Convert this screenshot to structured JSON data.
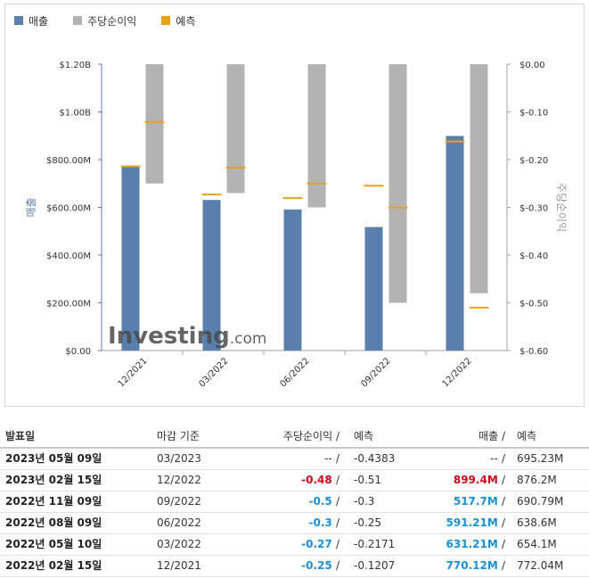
{
  "legend": {
    "revenue": "매출",
    "eps": "주당순이익",
    "forecast": "예측"
  },
  "colors": {
    "revenue": "#5b7fad",
    "eps": "#b3b3b3",
    "forecast": "#e8a21d",
    "negative": "#d0021b",
    "positive": "#1a8fd8"
  },
  "chart_data": {
    "type": "bar",
    "categories": [
      "12/2021",
      "03/2022",
      "06/2022",
      "09/2022",
      "12/2022"
    ],
    "series": [
      {
        "name": "매출",
        "axis": "left",
        "values": [
          770.12,
          631.21,
          591.21,
          517.7,
          899.4
        ]
      },
      {
        "name": "주당순이익",
        "axis": "right",
        "values": [
          -0.25,
          -0.27,
          -0.3,
          -0.5,
          -0.48
        ]
      },
      {
        "name": "예측",
        "kind": "marker",
        "axis": "left",
        "values": [
          772.04,
          654.1,
          null,
          null,
          876.2
        ]
      },
      {
        "name": "예측",
        "kind": "marker",
        "axis": "right",
        "values": [
          -0.1207,
          -0.2171,
          -0.25,
          -0.3,
          -0.51
        ]
      }
    ],
    "forecast_markers_left_axis": [
      772.04,
      654.1,
      638.6,
      690.79,
      876.2
    ],
    "left_axis": {
      "label": "매출",
      "ticks": [
        "$0.00",
        "$200.00M",
        "$400.00M",
        "$600.00M",
        "$800.00M",
        "$1.00B",
        "$1.20B"
      ],
      "ylim": [
        0,
        1200
      ]
    },
    "right_axis": {
      "label": "주당순이익",
      "ticks": [
        "$0.00",
        "$-0.10",
        "$-0.20",
        "$-0.30",
        "$-0.40",
        "$-0.50",
        "$-0.60"
      ],
      "ylim": [
        0,
        -0.6
      ]
    },
    "grid": false,
    "watermark": "Investing.com"
  },
  "table": {
    "headers": {
      "date": "발표일",
      "period": "마감 기준",
      "eps": "주당순이익",
      "eps_forecast": "예측",
      "revenue": "매출",
      "revenue_forecast": "예측",
      "slash": "/"
    },
    "rows": [
      {
        "date": "2023년 05월 09일",
        "period": "03/2023",
        "eps": "--",
        "eps_class": "na",
        "eps_forecast": "-0.4383",
        "revenue": "--",
        "revenue_class": "na",
        "revenue_forecast": "695.23M"
      },
      {
        "date": "2023년 02월 15일",
        "period": "12/2022",
        "eps": "-0.48",
        "eps_class": "neg",
        "eps_forecast": "-0.51",
        "revenue": "899.4M",
        "revenue_class": "neg",
        "revenue_forecast": "876.2M"
      },
      {
        "date": "2022년 11월 09일",
        "period": "09/2022",
        "eps": "-0.5",
        "eps_class": "pos",
        "eps_forecast": "-0.3",
        "revenue": "517.7M",
        "revenue_class": "pos",
        "revenue_forecast": "690.79M"
      },
      {
        "date": "2022년 08월 09일",
        "period": "06/2022",
        "eps": "-0.3",
        "eps_class": "pos",
        "eps_forecast": "-0.25",
        "revenue": "591.21M",
        "revenue_class": "pos",
        "revenue_forecast": "638.6M"
      },
      {
        "date": "2022년 05월 10일",
        "period": "03/2022",
        "eps": "-0.27",
        "eps_class": "pos",
        "eps_forecast": "-0.2171",
        "revenue": "631.21M",
        "revenue_class": "pos",
        "revenue_forecast": "654.1M"
      },
      {
        "date": "2022년 02월 15일",
        "period": "12/2021",
        "eps": "-0.25",
        "eps_class": "pos",
        "eps_forecast": "-0.1207",
        "revenue": "770.12M",
        "revenue_class": "pos",
        "revenue_forecast": "772.04M"
      }
    ]
  }
}
